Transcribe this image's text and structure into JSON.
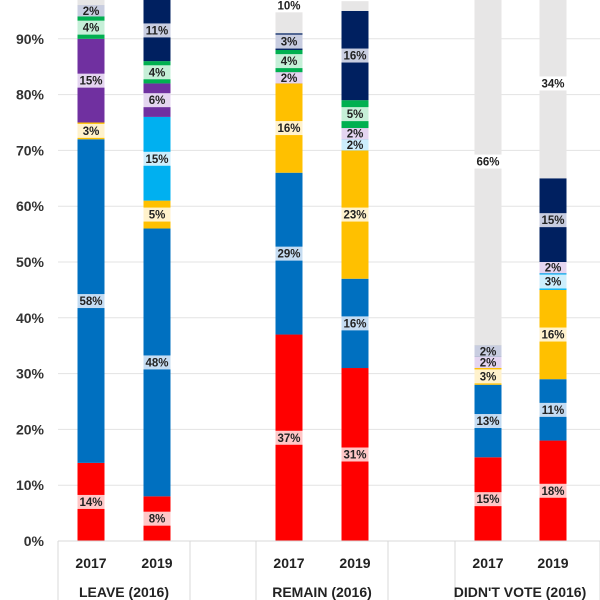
{
  "chart_data": {
    "type": "bar",
    "stacked": true,
    "title": "",
    "xlabel": "",
    "ylabel": "",
    "ylim": [
      0,
      100
    ],
    "yticks": [
      "0%",
      "10%",
      "20%",
      "30%",
      "40%",
      "50%",
      "60%",
      "70%",
      "80%",
      "90%"
    ],
    "grid": true,
    "groups": [
      {
        "label": "LEAVE (2016)",
        "categories": [
          "2017",
          "2019"
        ]
      },
      {
        "label": "REMAIN (2016)",
        "categories": [
          "2017",
          "2019"
        ]
      },
      {
        "label": "DIDN'T VOTE (2016)",
        "categories": [
          "2017",
          "2019"
        ]
      }
    ],
    "categories": [
      "LEAVE 2017",
      "LEAVE 2019",
      "REMAIN 2017",
      "REMAIN 2019",
      "DIDN'T VOTE 2017",
      "DIDN'T VOTE 2019"
    ],
    "series": [
      {
        "name": "red",
        "color": "#ff0000",
        "label_bg": "#ffc7c7",
        "values": [
          14,
          8,
          37,
          31,
          15,
          18
        ],
        "labels": [
          "14%",
          "8%",
          "37%",
          "31%",
          "15%",
          "18%"
        ]
      },
      {
        "name": "blue",
        "color": "#0070c0",
        "label_bg": "#c5dcf2",
        "values": [
          58,
          48,
          29,
          16,
          13,
          11
        ],
        "labels": [
          "58%",
          "48%",
          "29%",
          "16%",
          "13%",
          "11%"
        ]
      },
      {
        "name": "yellow",
        "color": "#ffc000",
        "label_bg": "#fff2cc",
        "values": [
          3,
          5,
          16,
          23,
          3,
          16
        ],
        "labels": [
          "3%",
          "5%",
          "16%",
          "23%",
          "3%",
          "16%"
        ]
      },
      {
        "name": "cyan",
        "color": "#00b0f0",
        "label_bg": "#cdeefc",
        "values": [
          0,
          15,
          0,
          2,
          0,
          3
        ],
        "labels": [
          "",
          "15%",
          "",
          "2%",
          "",
          "3%"
        ]
      },
      {
        "name": "purple",
        "color": "#7030a0",
        "label_bg": "#e4d5f0",
        "values": [
          15,
          6,
          2,
          2,
          2,
          2
        ],
        "labels": [
          "15%",
          "6%",
          "2%",
          "2%",
          "2%",
          "2%"
        ]
      },
      {
        "name": "green",
        "color": "#00b050",
        "label_bg": "#c6efd8",
        "values": [
          4,
          4,
          4,
          5,
          0,
          0
        ],
        "labels": [
          "4%",
          "4%",
          "4%",
          "5%",
          "",
          ""
        ]
      },
      {
        "name": "navy",
        "color": "#002060",
        "label_bg": "#c8cde0",
        "values": [
          2,
          11,
          3,
          16,
          2,
          15
        ],
        "labels": [
          "2%",
          "11%",
          "3%",
          "16%",
          "2%",
          "15%"
        ]
      },
      {
        "name": "grey",
        "color": "#e7e6e6",
        "label_bg": "#ffffff",
        "values": [
          4,
          3,
          10,
          6,
          66,
          34
        ],
        "labels": [
          "",
          "",
          "10%",
          "6%",
          "66%",
          "34%"
        ]
      }
    ]
  }
}
